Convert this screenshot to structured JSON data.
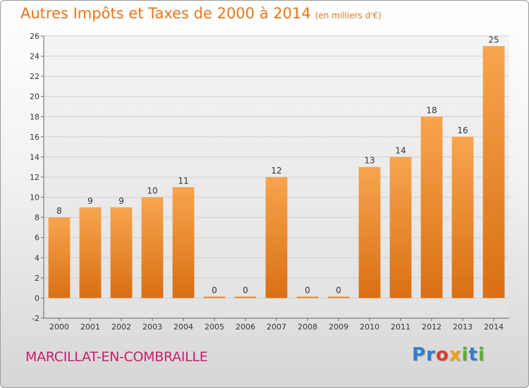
{
  "header": {
    "title": "Autres Impôts et Taxes de 2000 à 2014",
    "unit": "(en milliers d'€)"
  },
  "footer": {
    "commune": "MARCILLAT-EN-COMBRAILLE",
    "logo_letters": [
      {
        "ch": "P",
        "color": "#2f7fcf"
      },
      {
        "ch": "r",
        "color": "#2f7fcf"
      },
      {
        "ch": "o",
        "color": "#e03a2a"
      },
      {
        "ch": "x",
        "color": "#f0a21a"
      },
      {
        "ch": "i",
        "color": "#59b030"
      },
      {
        "ch": "t",
        "color": "#2f7fcf"
      },
      {
        "ch": "i",
        "color": "#59b030"
      }
    ]
  },
  "chart_data": {
    "type": "bar",
    "title": "Autres Impôts et Taxes de 2000 à 2014",
    "subtitle": "(en milliers d'€)",
    "categories": [
      "2000",
      "2001",
      "2002",
      "2003",
      "2004",
      "2005",
      "2006",
      "2007",
      "2008",
      "2009",
      "2010",
      "2011",
      "2012",
      "2013",
      "2014"
    ],
    "values": [
      8,
      9,
      9,
      10,
      11,
      0,
      0,
      12,
      0,
      0,
      13,
      14,
      18,
      16,
      25
    ],
    "ylim": [
      -2,
      26
    ],
    "yticks": [
      -2,
      0,
      2,
      4,
      6,
      8,
      10,
      12,
      14,
      16,
      18,
      20,
      22,
      24,
      26
    ],
    "grid": true,
    "colors": {
      "bar_top": "#f7a54e",
      "bar_bottom": "#d96f14",
      "grid": "#d0d0d0",
      "axis": "#666666"
    }
  }
}
